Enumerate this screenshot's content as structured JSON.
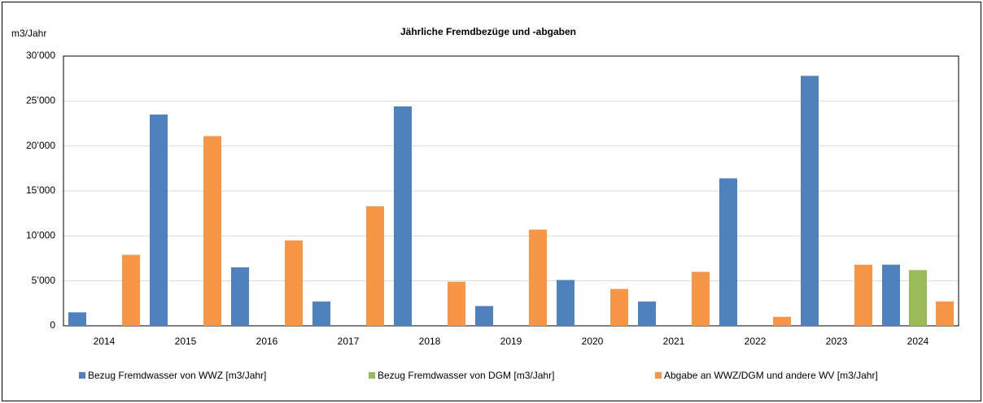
{
  "chart_data": {
    "type": "bar",
    "title": "Jährliche Fremdbezüge und -abgaben",
    "y_label": "m3/Jahr",
    "categories": [
      "2014",
      "2015",
      "2016",
      "2017",
      "2018",
      "2019",
      "2020",
      "2021",
      "2022",
      "2023",
      "2024"
    ],
    "series": [
      {
        "name": "Bezug Fremdwasser von WWZ [m3/Jahr]",
        "color": "#4f81bd",
        "values": [
          1500,
          23500,
          6500,
          2700,
          24400,
          2200,
          5100,
          2700,
          16400,
          27800,
          6800
        ]
      },
      {
        "name": "Bezug Fremdwasser von DGM [m3/Jahr]",
        "color": "#9bbb59",
        "values": [
          null,
          null,
          null,
          null,
          null,
          null,
          null,
          null,
          null,
          null,
          6200
        ]
      },
      {
        "name": "Abgabe an WWZ/DGM und andere WV [m3/Jahr]",
        "color": "#f79646",
        "values": [
          7900,
          21100,
          9500,
          13300,
          4900,
          10700,
          4100,
          6000,
          1000,
          6800,
          2700
        ]
      }
    ],
    "ylim": [
      0,
      30000
    ],
    "yticks": [
      0,
      {
        "value": 5000,
        "label": "5’000"
      },
      {
        "value": 10000,
        "label": "10’000"
      },
      {
        "value": 15000,
        "label": "15’000"
      },
      {
        "value": 20000,
        "label": "20’000"
      },
      {
        "value": 25000,
        "label": "25’000"
      },
      {
        "value": 30000,
        "label": "30’000"
      }
    ],
    "grid": true,
    "legend": "bottom"
  }
}
